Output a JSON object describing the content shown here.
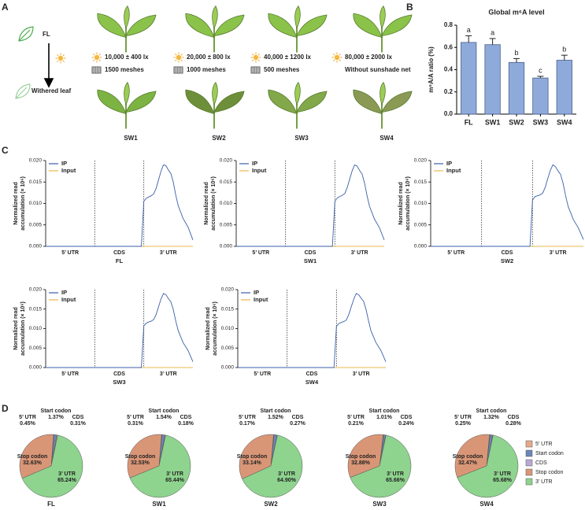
{
  "panel_labels": [
    "A",
    "B",
    "C",
    "D"
  ],
  "panel_a": {
    "start": "FL",
    "end": "Withered leaf",
    "conditions": [
      {
        "name": "SW1",
        "light": "10,000 ± 400 lx",
        "net": "1500 meshes"
      },
      {
        "name": "SW2",
        "light": "20,000 ± 800 lx",
        "net": "1000 meshes"
      },
      {
        "name": "SW3",
        "light": "40,000 ± 1200 lx",
        "net": "500 meshes"
      },
      {
        "name": "SW4",
        "light": "80,000 ± 2000 lx",
        "net": "Without sunshade net"
      }
    ]
  },
  "chart_data": [
    {
      "type": "bar",
      "title": "Global m⁶A level",
      "ylabel": "m⁶A/A ratio (%)",
      "categories": [
        "FL",
        "SW1",
        "SW2",
        "SW3",
        "SW4"
      ],
      "values": [
        0.645,
        0.625,
        0.465,
        0.325,
        0.485
      ],
      "errors": [
        0.06,
        0.055,
        0.035,
        0.015,
        0.045
      ],
      "labels": [
        "a",
        "a",
        "b",
        "c",
        "b"
      ],
      "color": "#8eaadb",
      "ylim": [
        0,
        0.8
      ],
      "yticks": [
        {
          "value": 0,
          "label": "0.0"
        },
        0.2,
        0.4,
        0.6,
        0.8
      ]
    },
    {
      "type": "line",
      "title": "FL",
      "ylabel": [
        "Normalized read",
        "accumulation (× 10⁶)"
      ],
      "regions": [
        "5’ UTR",
        "CDS",
        "3’ UTR"
      ],
      "x": [
        0,
        0.5,
        1,
        1.5,
        1.9,
        1.95,
        2,
        2.05,
        2.1,
        2.15,
        2.2,
        2.25,
        2.3,
        2.35,
        2.4,
        2.45,
        2.5,
        2.55,
        2.6,
        2.65,
        2.7,
        2.8,
        2.9,
        3
      ],
      "series": [
        {
          "name": "IP",
          "color": "#3a5fa8",
          "values": [
            0,
            0,
            0,
            0,
            0,
            0,
            0.0105,
            0.0112,
            0.0115,
            0.0118,
            0.0122,
            0.0135,
            0.0155,
            0.0175,
            0.019,
            0.0188,
            0.0178,
            0.017,
            0.015,
            0.012,
            0.0095,
            0.0065,
            0.0045,
            0.0015
          ]
        },
        {
          "name": "Input",
          "color": "#e8b84a",
          "values": [
            0,
            0,
            0,
            0,
            0,
            0,
            0,
            0,
            0,
            0,
            0,
            0,
            0,
            0,
            0,
            0,
            0,
            0,
            0,
            0,
            0,
            0,
            0,
            0
          ]
        }
      ],
      "xlim": [
        0,
        3
      ],
      "ylim": [
        0,
        0.02
      ],
      "yticks": [
        {
          "value": 0,
          "label": "0.000"
        },
        {
          "value": 0.005,
          "label": "0.005"
        },
        {
          "value": 0.01,
          "label": "0.010"
        },
        {
          "value": 0.015,
          "label": "0.015"
        },
        {
          "value": 0.02,
          "label": "0.020"
        }
      ]
    },
    {
      "type": "line",
      "title": "SW1",
      "ylabel": [
        "Normalized read",
        "accumulation (× 10⁶)"
      ],
      "regions": [
        "5’ UTR",
        "CDS",
        "3’ UTR"
      ],
      "x": [
        0,
        0.5,
        1,
        1.5,
        1.9,
        1.95,
        2,
        2.05,
        2.1,
        2.15,
        2.2,
        2.25,
        2.3,
        2.35,
        2.4,
        2.45,
        2.5,
        2.55,
        2.6,
        2.65,
        2.7,
        2.8,
        2.9,
        3
      ],
      "series": [
        {
          "name": "IP",
          "color": "#3a5fa8",
          "values": [
            0,
            0,
            0,
            0,
            0,
            0,
            0.0105,
            0.0113,
            0.0116,
            0.0119,
            0.0123,
            0.0137,
            0.0157,
            0.0176,
            0.019,
            0.0187,
            0.0177,
            0.0169,
            0.0148,
            0.0119,
            0.0094,
            0.0064,
            0.0044,
            0.0015
          ]
        },
        {
          "name": "Input",
          "color": "#e8b84a",
          "values": [
            0,
            0,
            0,
            0,
            0,
            0,
            0,
            0,
            0,
            0,
            0,
            0,
            0,
            0,
            0,
            0,
            0,
            0,
            0,
            0,
            0,
            0,
            0,
            0
          ]
        }
      ],
      "xlim": [
        0,
        3
      ],
      "ylim": [
        0,
        0.02
      ],
      "yticks": [
        {
          "value": 0,
          "label": "0.000"
        },
        {
          "value": 0.005,
          "label": "0.005"
        },
        {
          "value": 0.01,
          "label": "0.010"
        },
        {
          "value": 0.015,
          "label": "0.015"
        },
        {
          "value": 0.02,
          "label": "0.020"
        }
      ]
    },
    {
      "type": "line",
      "title": "SW2",
      "ylabel": [
        "Normalized read",
        "accumulation (× 10⁶)"
      ],
      "regions": [
        "5’ UTR",
        "CDS",
        "3’ UTR"
      ],
      "x": [
        0,
        0.5,
        1,
        1.5,
        1.9,
        1.95,
        2,
        2.05,
        2.1,
        2.15,
        2.2,
        2.25,
        2.3,
        2.35,
        2.4,
        2.45,
        2.5,
        2.55,
        2.6,
        2.65,
        2.7,
        2.8,
        2.9,
        3
      ],
      "series": [
        {
          "name": "IP",
          "color": "#3a5fa8",
          "values": [
            0,
            0,
            0,
            0,
            0,
            0,
            0.0108,
            0.0116,
            0.0118,
            0.012,
            0.0124,
            0.0138,
            0.0158,
            0.0177,
            0.019,
            0.0186,
            0.0176,
            0.0168,
            0.0147,
            0.0118,
            0.0093,
            0.0063,
            0.0043,
            0.0016
          ]
        },
        {
          "name": "Input",
          "color": "#e8b84a",
          "values": [
            0,
            0,
            0,
            0,
            0,
            0,
            0,
            0,
            0,
            0,
            0,
            0,
            0,
            0,
            0,
            0,
            0,
            0,
            0,
            0,
            0,
            0,
            0,
            0
          ]
        }
      ],
      "xlim": [
        0,
        3
      ],
      "ylim": [
        0,
        0.02
      ],
      "yticks": [
        {
          "value": 0,
          "label": "0.000"
        },
        {
          "value": 0.005,
          "label": "0.005"
        },
        {
          "value": 0.01,
          "label": "0.010"
        },
        {
          "value": 0.015,
          "label": "0.015"
        },
        {
          "value": 0.02,
          "label": "0.020"
        }
      ]
    },
    {
      "type": "line",
      "title": "SW3",
      "ylabel": [
        "Normalized read",
        "accumulation (× 10⁶)"
      ],
      "regions": [
        "5’ UTR",
        "CDS",
        "3’ UTR"
      ],
      "x": [
        0,
        0.5,
        1,
        1.5,
        1.9,
        1.95,
        2,
        2.05,
        2.1,
        2.15,
        2.2,
        2.25,
        2.3,
        2.35,
        2.4,
        2.45,
        2.5,
        2.55,
        2.6,
        2.65,
        2.7,
        2.8,
        2.9,
        3
      ],
      "series": [
        {
          "name": "IP",
          "color": "#3a5fa8",
          "values": [
            0,
            0,
            0,
            0,
            0,
            0,
            0.0107,
            0.0114,
            0.0117,
            0.0119,
            0.0123,
            0.0136,
            0.0156,
            0.0176,
            0.019,
            0.0187,
            0.0177,
            0.0169,
            0.0149,
            0.012,
            0.0095,
            0.0064,
            0.0044,
            0.0015
          ]
        },
        {
          "name": "Input",
          "color": "#e8b84a",
          "values": [
            0,
            0,
            0,
            0,
            0,
            0,
            0,
            0,
            0,
            0,
            0,
            0,
            0,
            0,
            0,
            0,
            0,
            0,
            0,
            0,
            0,
            0,
            0,
            0
          ]
        }
      ],
      "xlim": [
        0,
        3
      ],
      "ylim": [
        0,
        0.02
      ],
      "yticks": [
        {
          "value": 0,
          "label": "0.000"
        },
        {
          "value": 0.005,
          "label": "0.005"
        },
        {
          "value": 0.01,
          "label": "0.010"
        },
        {
          "value": 0.015,
          "label": "0.015"
        },
        {
          "value": 0.02,
          "label": "0.020"
        }
      ]
    },
    {
      "type": "line",
      "title": "SW4",
      "ylabel": [
        "Normalized read",
        "accumulation (× 10⁶)"
      ],
      "regions": [
        "5’ UTR",
        "CDS",
        "3’ UTR"
      ],
      "x": [
        0,
        0.5,
        1,
        1.5,
        1.9,
        1.95,
        2,
        2.05,
        2.1,
        2.15,
        2.2,
        2.25,
        2.3,
        2.35,
        2.4,
        2.45,
        2.5,
        2.55,
        2.6,
        2.65,
        2.7,
        2.8,
        2.9,
        3
      ],
      "series": [
        {
          "name": "IP",
          "color": "#3a5fa8",
          "values": [
            0,
            0,
            0,
            0,
            0,
            0,
            0.0106,
            0.0113,
            0.0116,
            0.0118,
            0.0122,
            0.0136,
            0.0156,
            0.0175,
            0.019,
            0.0187,
            0.0178,
            0.017,
            0.0149,
            0.012,
            0.0094,
            0.0064,
            0.0044,
            0.0015
          ]
        },
        {
          "name": "Input",
          "color": "#e8b84a",
          "values": [
            0,
            0,
            0,
            0,
            0,
            0,
            0,
            0,
            0,
            0,
            0,
            0,
            0,
            0,
            0,
            0,
            0,
            0,
            0,
            0,
            0,
            0,
            0,
            0
          ]
        }
      ],
      "xlim": [
        0,
        3
      ],
      "ylim": [
        0,
        0.02
      ],
      "yticks": [
        {
          "value": 0,
          "label": "0.000"
        },
        {
          "value": 0.005,
          "label": "0.005"
        },
        {
          "value": 0.01,
          "label": "0.010"
        },
        {
          "value": 0.015,
          "label": "0.015"
        },
        {
          "value": 0.02,
          "label": "0.020"
        }
      ]
    },
    {
      "type": "pie",
      "title": "FL",
      "categories": [
        "5’ UTR",
        "Start codon",
        "CDS",
        "Stop codon",
        "3’ UTR"
      ],
      "values": [
        0.45,
        1.37,
        0.31,
        32.63,
        65.24
      ],
      "value_labels": [
        "0.45%",
        "1.37%",
        "0.31%",
        "32.63%",
        "65.24%"
      ],
      "colors": [
        "#e7a98a",
        "#6b87b8",
        "#b9a9d6",
        "#d99677",
        "#8ed38e"
      ]
    },
    {
      "type": "pie",
      "title": "SW1",
      "categories": [
        "5’ UTR",
        "Start codon",
        "CDS",
        "Stop codon",
        "3’ UTR"
      ],
      "values": [
        0.31,
        1.54,
        0.18,
        32.53,
        65.44
      ],
      "value_labels": [
        "0.31%",
        "1.54%",
        "0.18%",
        "32.53%",
        "65.44%"
      ],
      "colors": [
        "#e7a98a",
        "#6b87b8",
        "#b9a9d6",
        "#d99677",
        "#8ed38e"
      ]
    },
    {
      "type": "pie",
      "title": "SW2",
      "categories": [
        "5’ UTR",
        "Start codon",
        "CDS",
        "Stop codon",
        "3’ UTR"
      ],
      "values": [
        0.17,
        1.52,
        0.27,
        33.14,
        64.9
      ],
      "value_labels": [
        "0.17%",
        "1.52%",
        "0.27%",
        "33.14%",
        "64.90%"
      ],
      "colors": [
        "#e7a98a",
        "#6b87b8",
        "#b9a9d6",
        "#d99677",
        "#8ed38e"
      ]
    },
    {
      "type": "pie",
      "title": "SW3",
      "categories": [
        "5’ UTR",
        "Start codon",
        "CDS",
        "Stop codon",
        "3’ UTR"
      ],
      "values": [
        0.21,
        1.01,
        0.24,
        32.88,
        65.66
      ],
      "value_labels": [
        "0.21%",
        "1.01%",
        "0.24%",
        "32.88%",
        "65.66%"
      ],
      "colors": [
        "#e7a98a",
        "#6b87b8",
        "#b9a9d6",
        "#d99677",
        "#8ed38e"
      ]
    },
    {
      "type": "pie",
      "title": "SW4",
      "categories": [
        "5’ UTR",
        "Start codon",
        "CDS",
        "Stop codon",
        "3’ UTR"
      ],
      "values": [
        0.25,
        1.32,
        0.28,
        32.47,
        65.68
      ],
      "value_labels": [
        "0.25%",
        "1.32%",
        "0.28%",
        "32.47%",
        "65.68%"
      ],
      "colors": [
        "#e7a98a",
        "#6b87b8",
        "#b9a9d6",
        "#d99677",
        "#8ed38e"
      ],
      "legend": "right"
    }
  ]
}
